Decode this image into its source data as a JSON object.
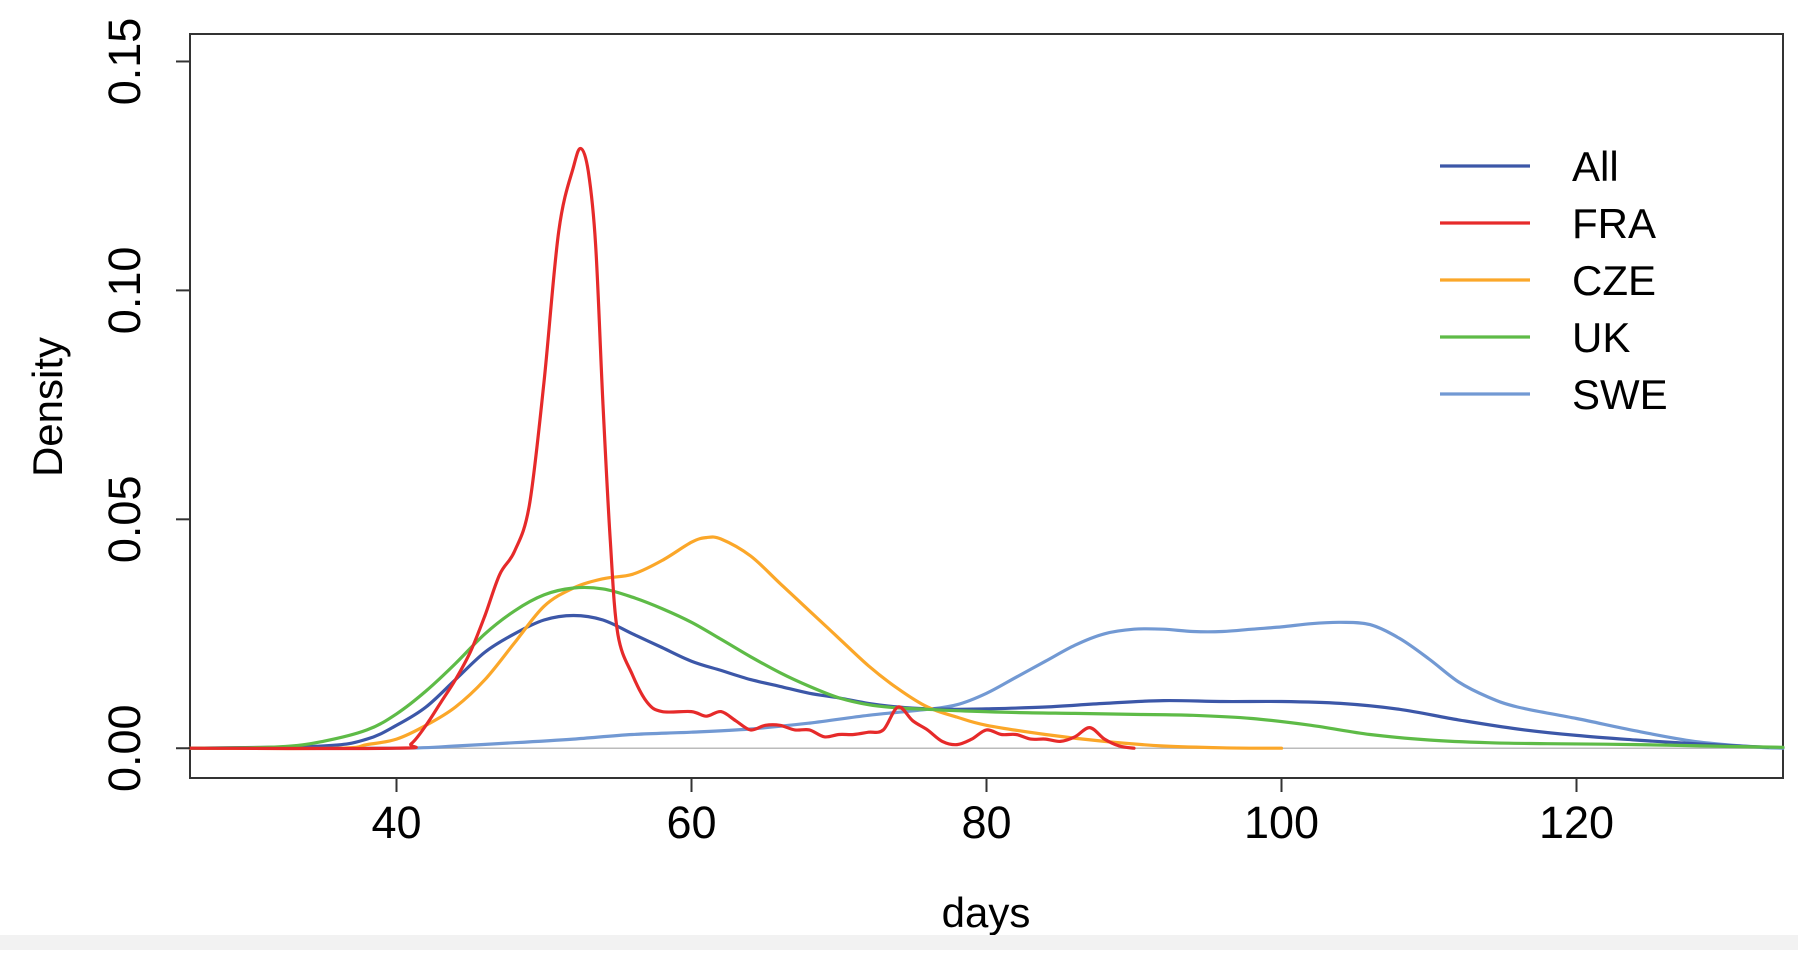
{
  "chart_data": {
    "type": "line",
    "title": "",
    "xlabel": "days",
    "ylabel": "Density",
    "xlim": [
      26,
      134
    ],
    "ylim": [
      -0.0065,
      0.156
    ],
    "x_ticks": [
      40,
      60,
      80,
      100,
      120
    ],
    "x_tick_labels": [
      "40",
      "60",
      "80",
      "100",
      "120"
    ],
    "y_ticks": [
      0.0,
      0.05,
      0.1,
      0.15
    ],
    "y_tick_labels": [
      "0.00",
      "0.05",
      "0.10",
      "0.15"
    ],
    "grid": false,
    "legend_position": "top-right",
    "baseline": 0,
    "series": [
      {
        "name": "All",
        "color": "#3c57a8",
        "points": [
          [
            26,
            0
          ],
          [
            35,
            0.0005
          ],
          [
            38,
            0.002
          ],
          [
            40,
            0.005
          ],
          [
            42,
            0.009
          ],
          [
            44,
            0.015
          ],
          [
            46,
            0.021
          ],
          [
            48,
            0.025
          ],
          [
            50,
            0.028
          ],
          [
            52,
            0.029
          ],
          [
            54,
            0.028
          ],
          [
            56,
            0.025
          ],
          [
            58,
            0.022
          ],
          [
            60,
            0.019
          ],
          [
            62,
            0.017
          ],
          [
            64,
            0.015
          ],
          [
            66,
            0.0135
          ],
          [
            68,
            0.012
          ],
          [
            70,
            0.011
          ],
          [
            72,
            0.0098
          ],
          [
            74,
            0.009
          ],
          [
            76,
            0.0086
          ],
          [
            78,
            0.0085
          ],
          [
            80,
            0.0086
          ],
          [
            84,
            0.009
          ],
          [
            88,
            0.0098
          ],
          [
            92,
            0.0104
          ],
          [
            96,
            0.0102
          ],
          [
            100,
            0.0102
          ],
          [
            104,
            0.0098
          ],
          [
            108,
            0.0085
          ],
          [
            112,
            0.0062
          ],
          [
            116,
            0.0042
          ],
          [
            120,
            0.0028
          ],
          [
            124,
            0.0018
          ],
          [
            128,
            0.001
          ],
          [
            131,
            0.0005
          ],
          [
            133,
            0.0002
          ]
        ]
      },
      {
        "name": "FRA",
        "color": "#e62a2a",
        "points": [
          [
            26,
            0
          ],
          [
            40,
            0
          ],
          [
            41,
            0.001
          ],
          [
            42,
            0.005
          ],
          [
            43,
            0.01
          ],
          [
            44,
            0.015
          ],
          [
            45,
            0.021
          ],
          [
            46,
            0.029
          ],
          [
            47,
            0.038
          ],
          [
            48,
            0.043
          ],
          [
            49,
            0.053
          ],
          [
            50,
            0.08
          ],
          [
            51,
            0.113
          ],
          [
            52,
            0.127
          ],
          [
            52.5,
            0.131
          ],
          [
            53,
            0.126
          ],
          [
            53.5,
            0.11
          ],
          [
            54,
            0.075
          ],
          [
            54.5,
            0.045
          ],
          [
            55,
            0.025
          ],
          [
            56,
            0.016
          ],
          [
            57,
            0.01
          ],
          [
            58,
            0.008
          ],
          [
            60,
            0.008
          ],
          [
            61,
            0.007
          ],
          [
            62,
            0.008
          ],
          [
            63,
            0.006
          ],
          [
            64,
            0.004
          ],
          [
            65,
            0.005
          ],
          [
            66,
            0.005
          ],
          [
            67,
            0.004
          ],
          [
            68,
            0.004
          ],
          [
            69,
            0.0025
          ],
          [
            70,
            0.003
          ],
          [
            71,
            0.003
          ],
          [
            72,
            0.0035
          ],
          [
            73,
            0.004
          ],
          [
            74,
            0.009
          ],
          [
            75,
            0.006
          ],
          [
            76,
            0.004
          ],
          [
            77,
            0.0015
          ],
          [
            78,
            0.0008
          ],
          [
            79,
            0.002
          ],
          [
            80,
            0.004
          ],
          [
            81,
            0.003
          ],
          [
            82,
            0.003
          ],
          [
            83,
            0.002
          ],
          [
            84,
            0.002
          ],
          [
            85,
            0.0015
          ],
          [
            86,
            0.0025
          ],
          [
            87,
            0.0045
          ],
          [
            88,
            0.002
          ],
          [
            89,
            0.0005
          ],
          [
            90,
            0
          ]
        ]
      },
      {
        "name": "CZE",
        "color": "#fba729",
        "points": [
          [
            26,
            0
          ],
          [
            36,
            0
          ],
          [
            38,
            0.0008
          ],
          [
            40,
            0.002
          ],
          [
            42,
            0.005
          ],
          [
            44,
            0.009
          ],
          [
            46,
            0.015
          ],
          [
            48,
            0.023
          ],
          [
            50,
            0.031
          ],
          [
            52,
            0.035
          ],
          [
            54,
            0.037
          ],
          [
            56,
            0.038
          ],
          [
            58,
            0.041
          ],
          [
            60,
            0.045
          ],
          [
            61,
            0.046
          ],
          [
            62,
            0.0457
          ],
          [
            64,
            0.042
          ],
          [
            66,
            0.036
          ],
          [
            68,
            0.03
          ],
          [
            70,
            0.024
          ],
          [
            72,
            0.018
          ],
          [
            74,
            0.013
          ],
          [
            76,
            0.009
          ],
          [
            78,
            0.0068
          ],
          [
            80,
            0.005
          ],
          [
            84,
            0.003
          ],
          [
            88,
            0.0015
          ],
          [
            92,
            0.0005
          ],
          [
            96,
            0.0001
          ],
          [
            100,
            0
          ]
        ]
      },
      {
        "name": "UK",
        "color": "#5ebb47",
        "points": [
          [
            26,
            0
          ],
          [
            32,
            0.0003
          ],
          [
            35,
            0.0015
          ],
          [
            38,
            0.004
          ],
          [
            40,
            0.0075
          ],
          [
            42,
            0.0125
          ],
          [
            44,
            0.0185
          ],
          [
            46,
            0.025
          ],
          [
            48,
            0.03
          ],
          [
            50,
            0.0335
          ],
          [
            52,
            0.035
          ],
          [
            54,
            0.0348
          ],
          [
            56,
            0.033
          ],
          [
            58,
            0.0305
          ],
          [
            60,
            0.0275
          ],
          [
            62,
            0.0238
          ],
          [
            64,
            0.02
          ],
          [
            66,
            0.0165
          ],
          [
            68,
            0.0135
          ],
          [
            70,
            0.011
          ],
          [
            72,
            0.0095
          ],
          [
            74,
            0.0088
          ],
          [
            76,
            0.0085
          ],
          [
            78,
            0.0082
          ],
          [
            82,
            0.0078
          ],
          [
            86,
            0.0076
          ],
          [
            90,
            0.0074
          ],
          [
            94,
            0.0072
          ],
          [
            98,
            0.0065
          ],
          [
            102,
            0.005
          ],
          [
            106,
            0.003
          ],
          [
            110,
            0.0018
          ],
          [
            114,
            0.0012
          ],
          [
            118,
            0.001
          ],
          [
            124,
            0.0008
          ],
          [
            130,
            0.0004
          ],
          [
            134,
            0.0002
          ]
        ]
      },
      {
        "name": "SWE",
        "color": "#7299d3",
        "points": [
          [
            26,
            0
          ],
          [
            40,
            0
          ],
          [
            44,
            0.0005
          ],
          [
            48,
            0.0012
          ],
          [
            52,
            0.002
          ],
          [
            56,
            0.003
          ],
          [
            60,
            0.0035
          ],
          [
            64,
            0.0042
          ],
          [
            68,
            0.0055
          ],
          [
            72,
            0.0072
          ],
          [
            76,
            0.0085
          ],
          [
            78,
            0.0095
          ],
          [
            80,
            0.012
          ],
          [
            82,
            0.0155
          ],
          [
            84,
            0.019
          ],
          [
            86,
            0.0225
          ],
          [
            88,
            0.025
          ],
          [
            90,
            0.026
          ],
          [
            92,
            0.026
          ],
          [
            94,
            0.0255
          ],
          [
            96,
            0.0255
          ],
          [
            98,
            0.026
          ],
          [
            100,
            0.0265
          ],
          [
            102,
            0.0272
          ],
          [
            104,
            0.0275
          ],
          [
            106,
            0.027
          ],
          [
            108,
            0.024
          ],
          [
            110,
            0.0195
          ],
          [
            112,
            0.0145
          ],
          [
            114,
            0.0112
          ],
          [
            116,
            0.009
          ],
          [
            120,
            0.0065
          ],
          [
            124,
            0.0038
          ],
          [
            128,
            0.0015
          ],
          [
            132,
            0.0003
          ],
          [
            134,
            0
          ]
        ]
      }
    ]
  }
}
